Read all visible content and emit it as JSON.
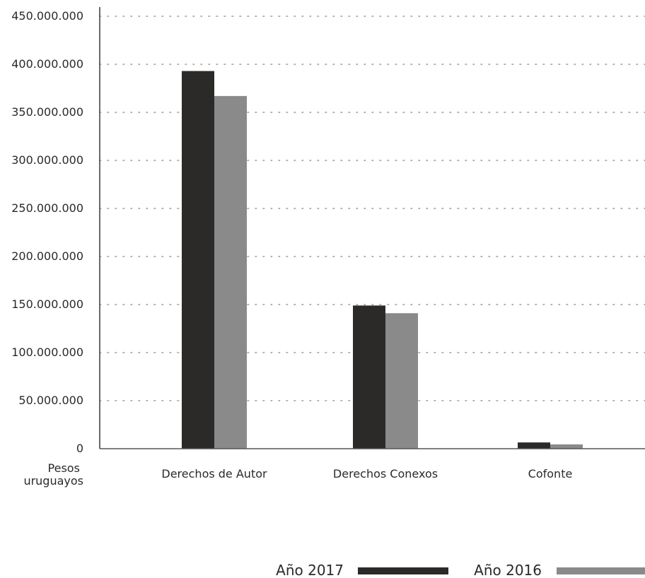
{
  "chart_data": {
    "type": "bar",
    "categories": [
      "Derechos de Autor",
      "Derechos Conexos",
      "Cofonte"
    ],
    "series": [
      {
        "name": "Año 2017",
        "values": [
          393000000,
          149000000,
          6500000
        ],
        "color": "#2b2a28"
      },
      {
        "name": "Año 2016",
        "values": [
          367000000,
          141000000,
          4500000
        ],
        "color": "#8a8a8a"
      }
    ],
    "ylabel": [
      "Pesos",
      "uruguayos"
    ],
    "ylim": [
      0,
      450000000
    ],
    "yticks": [
      0,
      50000000,
      100000000,
      150000000,
      200000000,
      250000000,
      300000000,
      350000000,
      400000000,
      450000000
    ],
    "ytick_labels": [
      "0",
      "50.000.000",
      "100.000.000",
      "150.000.000",
      "200.000.000",
      "250.000.000",
      "300.000.000",
      "350.000.000",
      "400.000.000",
      "450.000.000"
    ],
    "grid": "dotted horizontal",
    "legend_position": "bottom-right"
  }
}
